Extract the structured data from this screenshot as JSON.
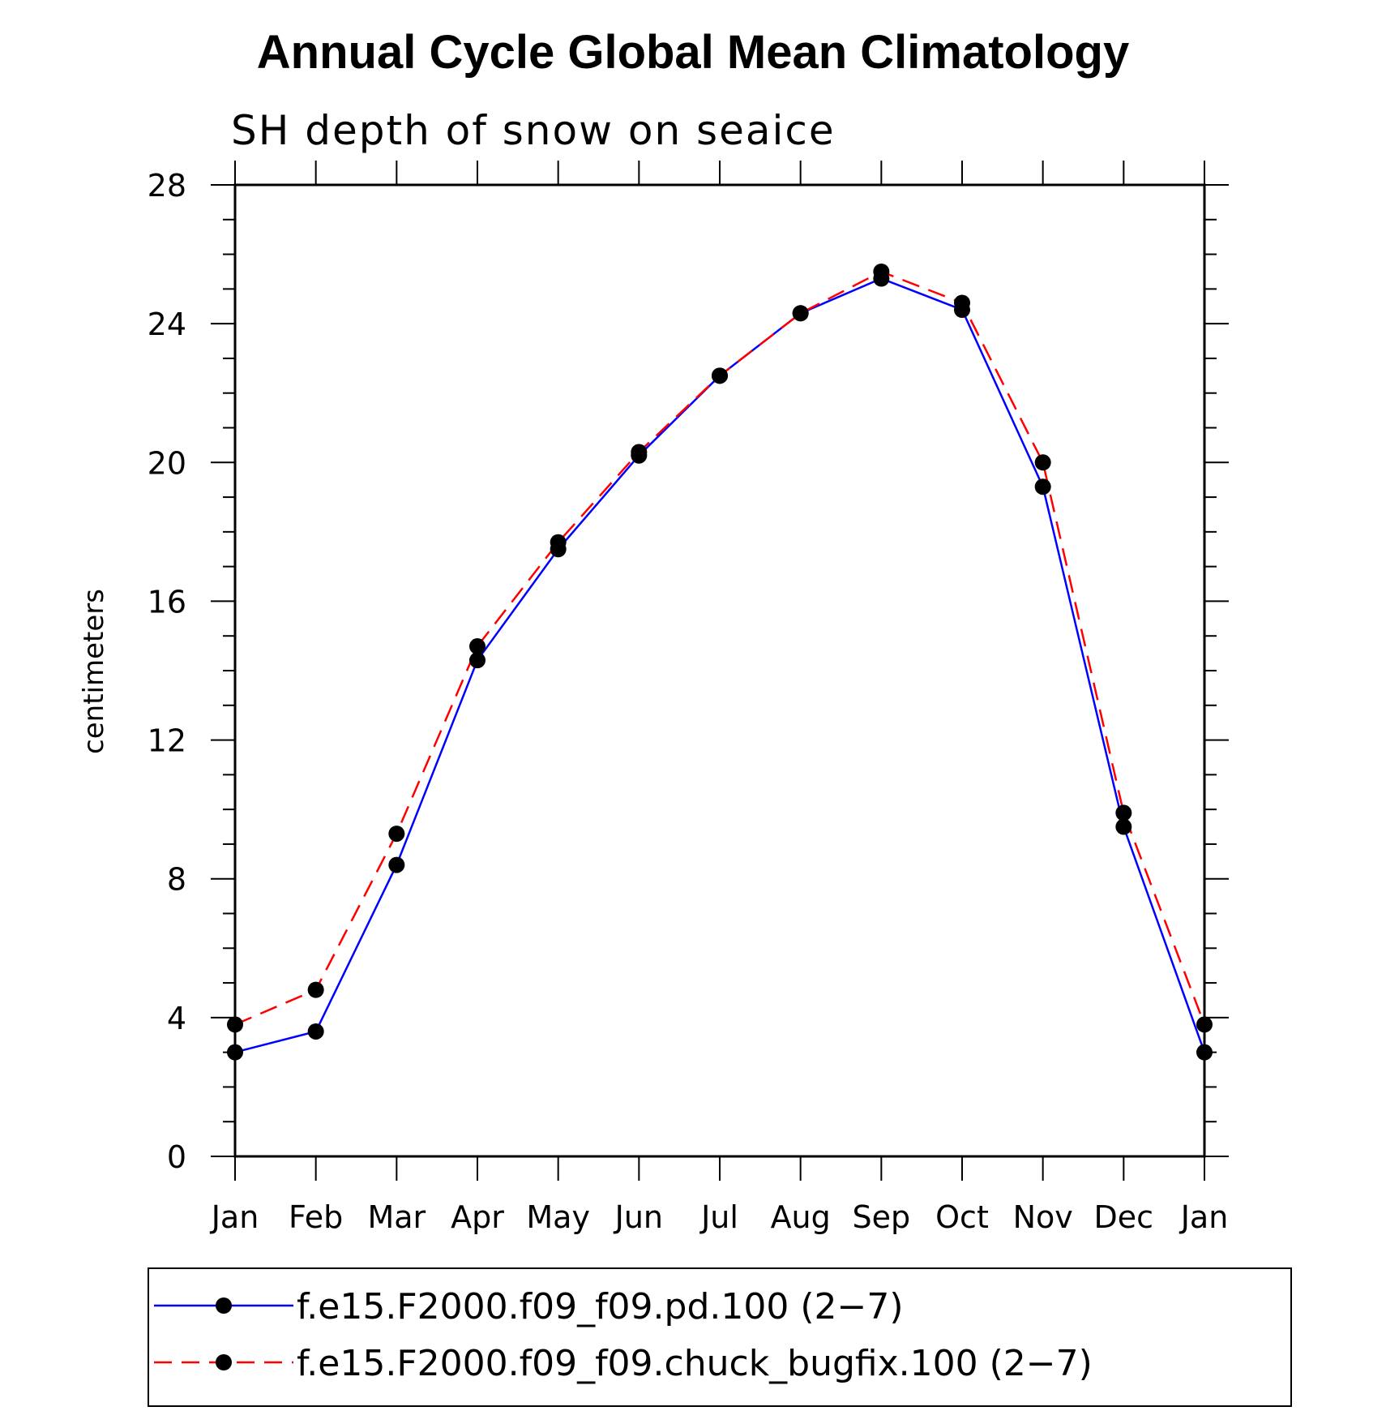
{
  "chart_data": {
    "type": "line",
    "title": "Annual Cycle Global Mean Climatology",
    "subtitle": "SH depth of snow on seaice",
    "xlabel": "",
    "ylabel": "centimeters",
    "categories": [
      "Jan",
      "Feb",
      "Mar",
      "Apr",
      "May",
      "Jun",
      "Jul",
      "Aug",
      "Sep",
      "Oct",
      "Nov",
      "Dec",
      "Jan"
    ],
    "ylim": [
      0,
      28
    ],
    "yticks": [
      "0",
      "4",
      "8",
      "12",
      "16",
      "20",
      "24",
      "28"
    ],
    "series": [
      {
        "name": "f.e15.F2000.f09_f09.pd.100 (2−7)",
        "color": "#0000ff",
        "dash": "solid",
        "marker": "filled-circle",
        "values": [
          3.0,
          3.6,
          8.4,
          14.3,
          17.5,
          20.2,
          22.5,
          24.3,
          25.3,
          24.4,
          19.3,
          9.5,
          3.0
        ]
      },
      {
        "name": "f.e15.F2000.f09_f09.chuck_bugfix.100 (2−7)",
        "color": "#ff0000",
        "dash": "dashed",
        "marker": "filled-circle",
        "values": [
          3.8,
          4.8,
          9.3,
          14.7,
          17.7,
          20.3,
          22.5,
          24.3,
          25.5,
          24.6,
          20.0,
          9.9,
          3.8
        ]
      }
    ],
    "legend": {
      "position": "bottom"
    }
  }
}
